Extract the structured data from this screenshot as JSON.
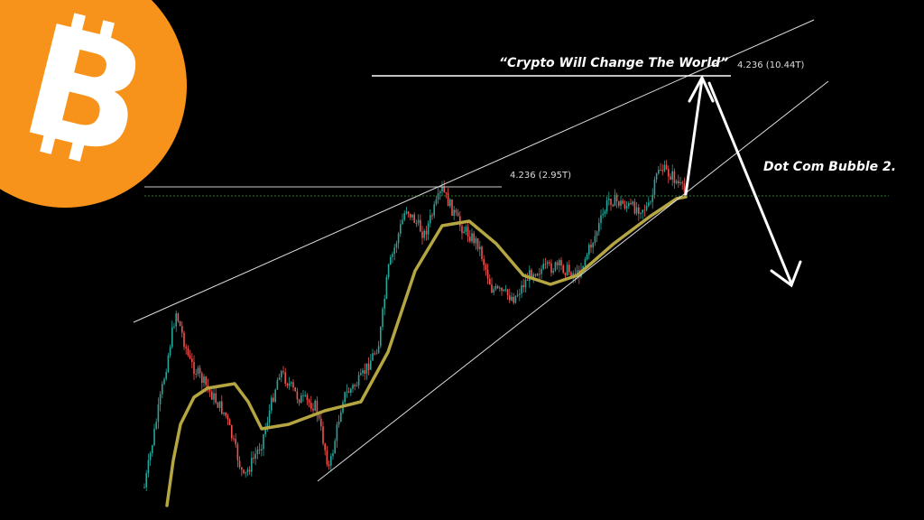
{
  "chart_data": {
    "type": "candlestick",
    "title": "",
    "annotations": {
      "headline": "“Crypto Will Change The World”",
      "fib_upper": "4.236 (10.44T)",
      "fib_lower": "4.236 (2.95T)",
      "forecast": "Dot Com Bubble 2."
    },
    "overlays": [
      "rising-wedge-upper-trendline",
      "rising-wedge-lower-trendline",
      "moving-average",
      "horizontal-target-lines",
      "dotted-support-line",
      "forecast-arrows"
    ],
    "colors": {
      "up": "#26a69a",
      "down": "#ef5350",
      "moving_average": "#b5a642",
      "logo": "#f7931a",
      "support": "#2e7d32",
      "lines": "#ffffff"
    },
    "grid": false
  },
  "logo": {
    "icon": "bitcoin-logo",
    "text": "B"
  }
}
